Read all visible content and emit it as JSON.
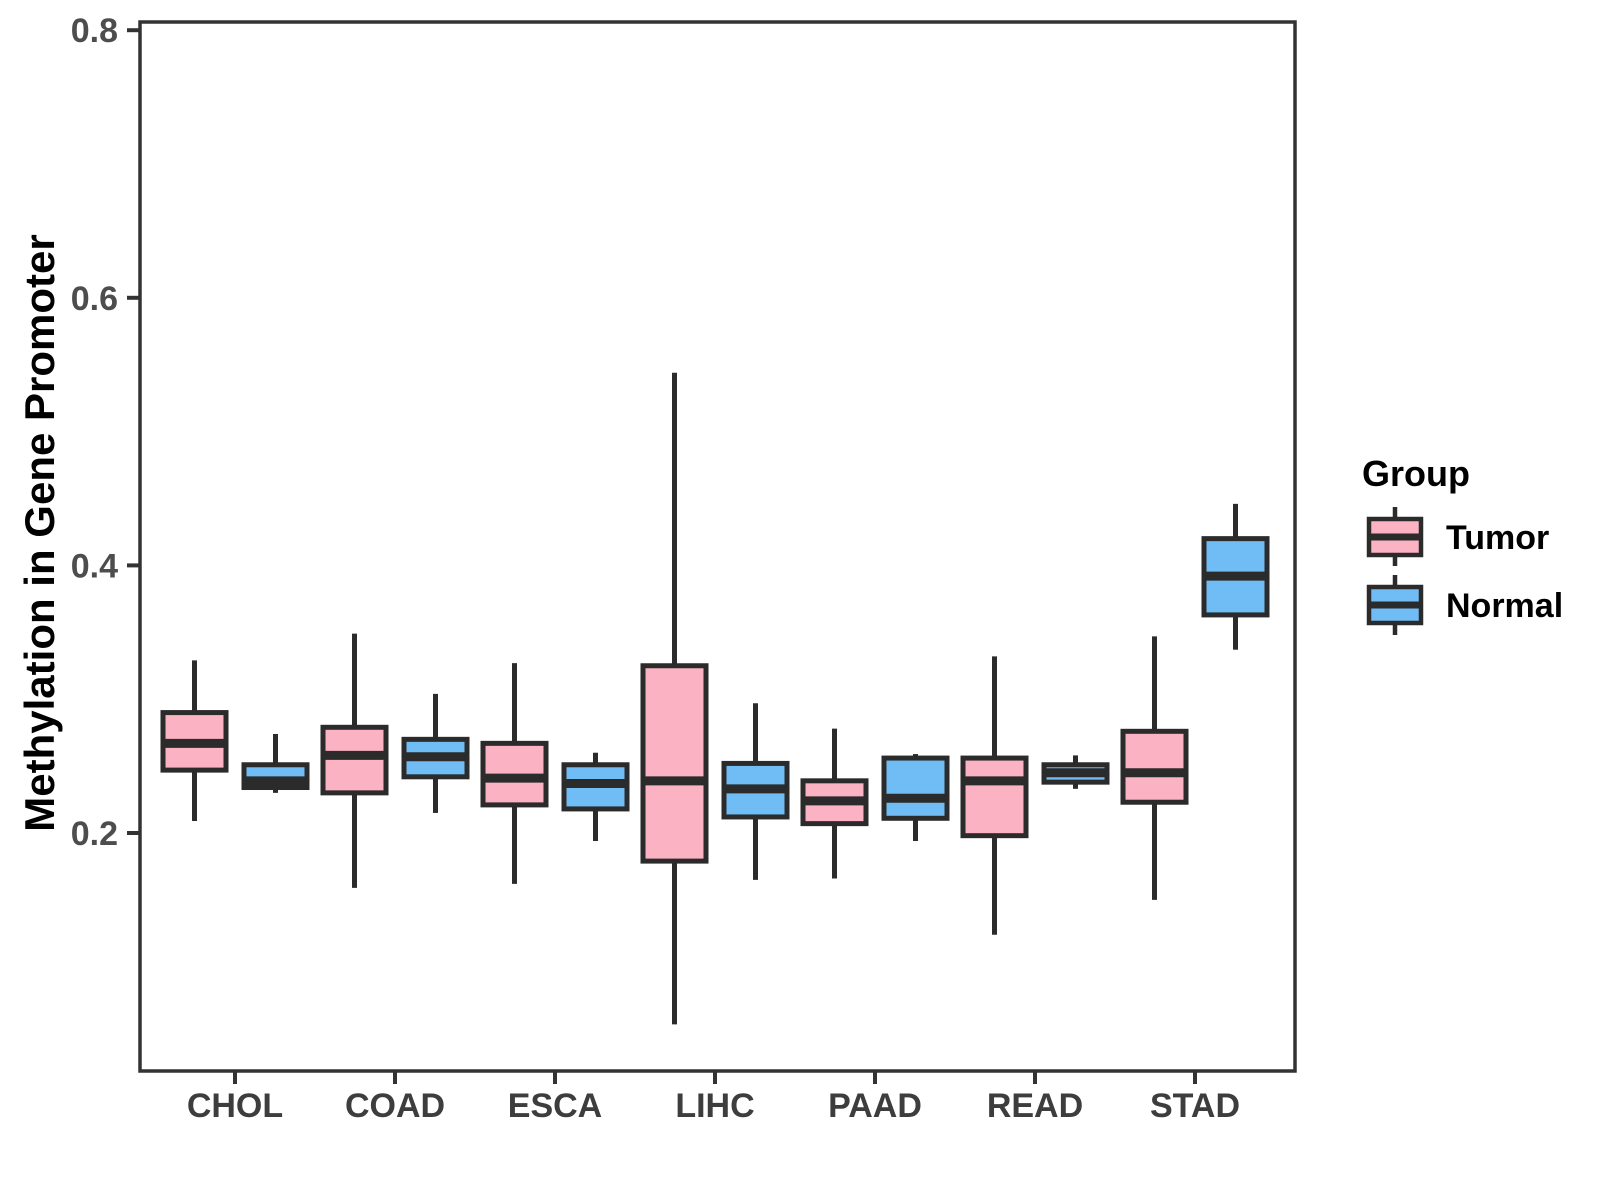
{
  "chart_data": {
    "type": "boxplot",
    "title": "",
    "xlabel": "",
    "ylabel": "Methylation in Gene Promoter",
    "categories": [
      "CHOL",
      "COAD",
      "ESCA",
      "LIHC",
      "PAAD",
      "READ",
      "STAD"
    ],
    "yticks": [
      {
        "label": "0.2",
        "value": 0.2
      },
      {
        "label": "0.4",
        "value": 0.4
      },
      {
        "label": "0.6",
        "value": 0.6
      },
      {
        "label": "0.8",
        "value": 0.8
      }
    ],
    "ylim": [
      0.02,
      0.81
    ],
    "grid": "off",
    "legend": {
      "title": "Group",
      "position": "right",
      "entries": [
        {
          "label": "Tumor",
          "color": "#FBB2C3"
        },
        {
          "label": "Normal",
          "color": "#6FBDF4"
        }
      ]
    },
    "colors": {
      "tumor_fill": "#FBB2C3",
      "normal_fill": "#6FBDF4",
      "box_stroke": "#2b2b2b",
      "panel_border": "#333333",
      "axis_text": "#4d4d4d"
    },
    "series": [
      {
        "name": "Tumor",
        "color": "#FBB2C3",
        "boxes": [
          {
            "category": "CHOL",
            "min": 0.209,
            "q1": 0.247,
            "median": 0.267,
            "q3": 0.29,
            "max": 0.329
          },
          {
            "category": "COAD",
            "min": 0.159,
            "q1": 0.23,
            "median": 0.258,
            "q3": 0.279,
            "max": 0.349
          },
          {
            "category": "ESCA",
            "min": 0.162,
            "q1": 0.221,
            "median": 0.241,
            "q3": 0.267,
            "max": 0.327
          },
          {
            "category": "LIHC",
            "min": 0.057,
            "q1": 0.179,
            "median": 0.239,
            "q3": 0.325,
            "max": 0.544
          },
          {
            "category": "PAAD",
            "min": 0.166,
            "q1": 0.207,
            "median": 0.224,
            "q3": 0.239,
            "max": 0.278
          },
          {
            "category": "READ",
            "min": 0.124,
            "q1": 0.198,
            "median": 0.239,
            "q3": 0.256,
            "max": 0.332
          },
          {
            "category": "STAD",
            "min": 0.15,
            "q1": 0.223,
            "median": 0.245,
            "q3": 0.276,
            "max": 0.347
          }
        ]
      },
      {
        "name": "Normal",
        "color": "#6FBDF4",
        "boxes": [
          {
            "category": "CHOL",
            "min": 0.23,
            "q1": 0.234,
            "median": 0.239,
            "q3": 0.251,
            "max": 0.274
          },
          {
            "category": "COAD",
            "min": 0.215,
            "q1": 0.242,
            "median": 0.257,
            "q3": 0.27,
            "max": 0.304
          },
          {
            "category": "ESCA",
            "min": 0.194,
            "q1": 0.218,
            "median": 0.237,
            "q3": 0.251,
            "max": 0.26
          },
          {
            "category": "LIHC",
            "min": 0.165,
            "q1": 0.212,
            "median": 0.233,
            "q3": 0.252,
            "max": 0.297
          },
          {
            "category": "PAAD",
            "min": 0.194,
            "q1": 0.211,
            "median": 0.226,
            "q3": 0.256,
            "max": 0.259
          },
          {
            "category": "READ",
            "min": 0.233,
            "q1": 0.238,
            "median": 0.245,
            "q3": 0.251,
            "max": 0.258
          },
          {
            "category": "STAD",
            "min": 0.337,
            "q1": 0.363,
            "median": 0.392,
            "q3": 0.42,
            "max": 0.446
          }
        ]
      }
    ]
  }
}
